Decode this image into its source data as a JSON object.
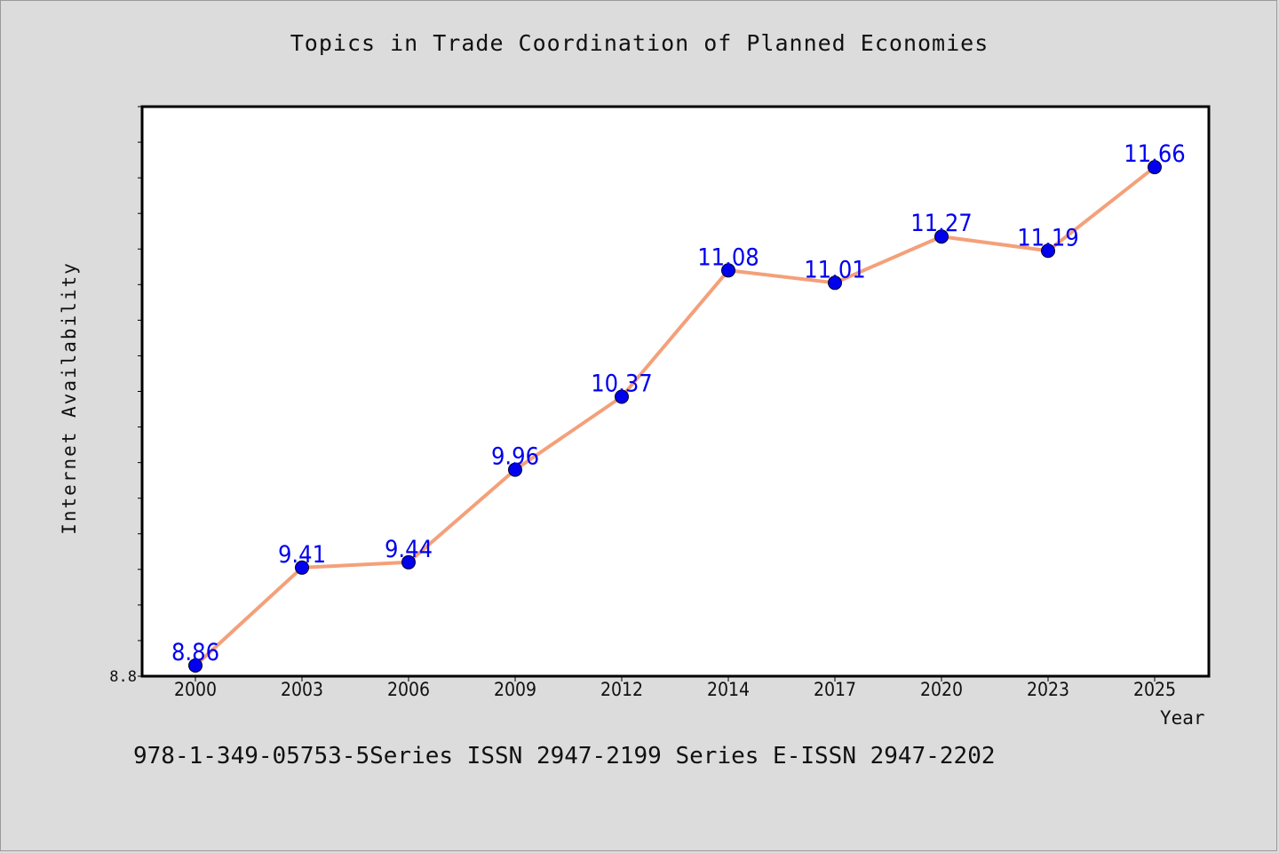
{
  "chart_data": {
    "type": "line",
    "title": "Topics in Trade Coordination of Planned Economies",
    "xlabel": "Year",
    "ylabel": "Internet Availability",
    "categories": [
      "2000",
      "2003",
      "2006",
      "2009",
      "2012",
      "2014",
      "2017",
      "2020",
      "2023",
      "2025"
    ],
    "series": [
      {
        "values": [
          8.86,
          9.41,
          9.44,
          9.96,
          10.37,
          11.08,
          11.01,
          11.27,
          11.19,
          11.66
        ]
      }
    ],
    "ylim": [
      8.8,
      12.0
    ],
    "y_tick_labels": [
      "8.8"
    ],
    "data_labels": true,
    "grid": false,
    "line_color": "#f4a07a",
    "marker_color": "#0000ee",
    "label_color": "#0000ee"
  },
  "footer": {
    "text": "978-1-349-05753-5Series ISSN 2947-2199 Series E-ISSN 2947-2202"
  }
}
